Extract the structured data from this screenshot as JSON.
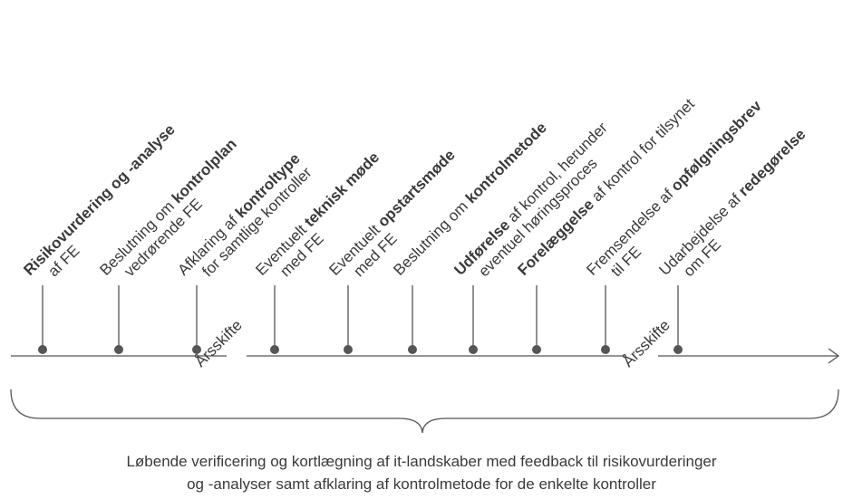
{
  "milestones": [
    {
      "line1": [
        {
          "text": "Risikovurdering og -analyse",
          "bold": true
        }
      ],
      "line2": [
        {
          "text": "af FE",
          "bold": false
        }
      ]
    },
    {
      "line1": [
        {
          "text": "Beslutning om ",
          "bold": false
        },
        {
          "text": "kontrolplan",
          "bold": true
        }
      ],
      "line2": [
        {
          "text": "vedrørende FE",
          "bold": false
        }
      ]
    },
    {
      "line1": [
        {
          "text": "Afklaring af ",
          "bold": false
        },
        {
          "text": "kontroltype",
          "bold": true
        }
      ],
      "line2": [
        {
          "text": "for samtlige kontroller",
          "bold": false
        }
      ]
    },
    {
      "line1": [
        {
          "text": "Eventuelt ",
          "bold": false
        },
        {
          "text": "teknisk møde",
          "bold": true
        }
      ],
      "line2": [
        {
          "text": "med FE",
          "bold": false
        }
      ]
    },
    {
      "line1": [
        {
          "text": "Eventuelt ",
          "bold": false
        },
        {
          "text": "opstartsmøde",
          "bold": true
        }
      ],
      "line2": [
        {
          "text": "med FE",
          "bold": false
        }
      ]
    },
    {
      "line1": [
        {
          "text": "Beslutning om ",
          "bold": false
        },
        {
          "text": "kontrolmetode",
          "bold": true
        }
      ],
      "line2": []
    },
    {
      "line1": [
        {
          "text": "Udførelse",
          "bold": true
        },
        {
          "text": " af kontrol, herunder",
          "bold": false
        }
      ],
      "line2": [
        {
          "text": "eventuel høringsproces",
          "bold": false
        }
      ]
    },
    {
      "line1": [
        {
          "text": "Forelæggelse",
          "bold": true
        },
        {
          "text": " af kontrol for tilsynet",
          "bold": false
        }
      ],
      "line2": []
    },
    {
      "line1": [
        {
          "text": "Fremsendelse af ",
          "bold": false
        },
        {
          "text": "opfølgningsbrev",
          "bold": true
        }
      ],
      "line2": [
        {
          "text": "til FE",
          "bold": false
        }
      ]
    },
    {
      "line1": [
        {
          "text": "Udarbejdelse af ",
          "bold": false
        },
        {
          "text": "redegørelse",
          "bold": true
        }
      ],
      "line2": [
        {
          "text": "om FE",
          "bold": false
        }
      ]
    }
  ],
  "year_changes": [
    "Årsskifte",
    "Årsskifte"
  ],
  "caption": [
    "Løbende verificering og kortlægning af it-landskaber med feedback til risikovurderinger",
    "og -analyser samt afklaring af kontrolmetode for de enkelte kontroller"
  ]
}
